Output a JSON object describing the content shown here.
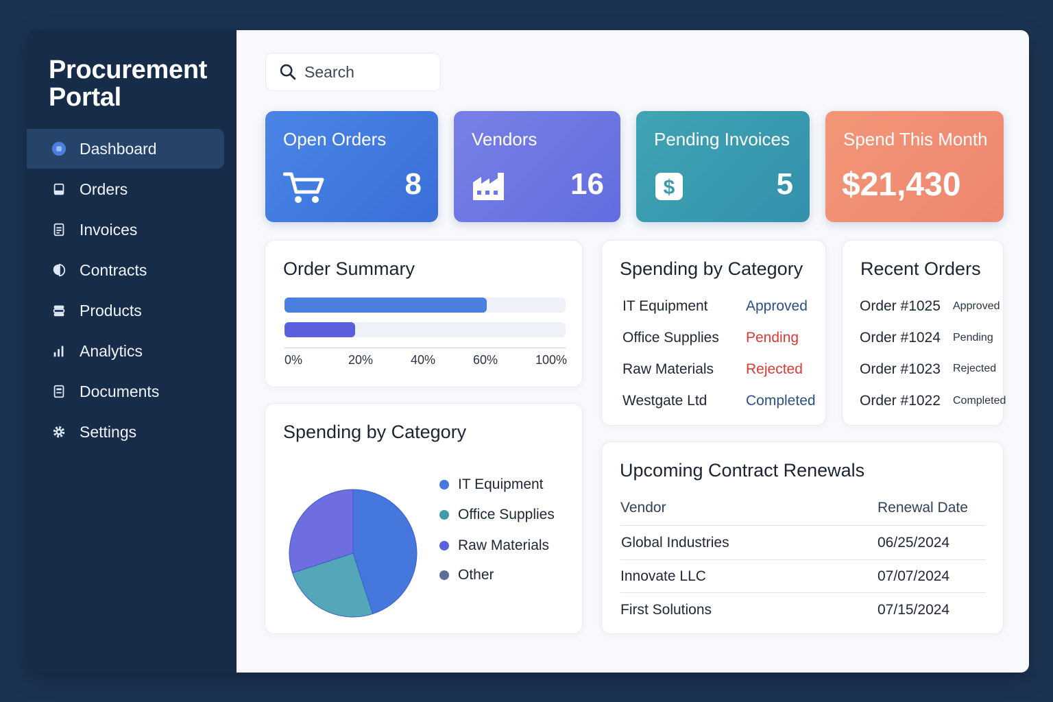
{
  "app": {
    "title_line1": "Procurement",
    "title_line2": "Portal"
  },
  "sidebar": {
    "items": [
      {
        "label": "Dashboard",
        "icon": "dashboard-icon",
        "active": true
      },
      {
        "label": "Orders",
        "icon": "orders-icon"
      },
      {
        "label": "Invoices",
        "icon": "invoices-icon"
      },
      {
        "label": "Contracts",
        "icon": "contracts-icon"
      },
      {
        "label": "Products",
        "icon": "products-icon"
      },
      {
        "label": "Analytics",
        "icon": "analytics-icon"
      },
      {
        "label": "Documents",
        "icon": "documents-icon"
      },
      {
        "label": "Settings",
        "icon": "settings-icon"
      }
    ]
  },
  "search": {
    "placeholder": "Search",
    "icon": "search-icon"
  },
  "kpis": [
    {
      "title": "Open Orders",
      "value": "8",
      "icon": "cart-icon",
      "color": "#3f78de"
    },
    {
      "title": "Vendors",
      "value": "16",
      "icon": "factory-icon",
      "color": "#6d76e3"
    },
    {
      "title": "Pending Invoices",
      "value": "5",
      "icon": "dollar-icon",
      "color": "#3a9bb0"
    },
    {
      "title": "Spend This Month",
      "value": "$21,430",
      "color": "#ef8c74"
    }
  ],
  "order_summary": {
    "title": "Order Summary",
    "chart_data": {
      "type": "bar",
      "orientation": "horizontal",
      "values": [
        72,
        25
      ],
      "colors": [
        "#4a7fe0",
        "#5b5fdc"
      ],
      "ticks": [
        "0%",
        "20%",
        "40%",
        "60%",
        "100%"
      ],
      "xlim": [
        0,
        100
      ]
    }
  },
  "spending_status": {
    "title": "Spending by Category",
    "rows": [
      {
        "label": "IT Equipment",
        "status": "Approved",
        "color": "#2c4f86"
      },
      {
        "label": "Office Supplies",
        "status": "Pending",
        "color": "#d83a34"
      },
      {
        "label": "Raw Materials",
        "status": "Rejected",
        "color": "#d83a34"
      },
      {
        "label": "Westgate Ltd",
        "status": "Completed",
        "color": "#2c4f86"
      }
    ]
  },
  "recent_orders": {
    "title": "Recent Orders",
    "rows": [
      {
        "order": "Order #1025",
        "status": "Approved"
      },
      {
        "order": "Order #1024",
        "status": "Pending"
      },
      {
        "order": "Order #1023",
        "status": "Rejected"
      },
      {
        "order": "Order #1022",
        "status": "Completed"
      }
    ]
  },
  "spending_pie": {
    "title": "Spending by Category",
    "chart_data": {
      "type": "pie",
      "slices": [
        {
          "label": "IT Equipment",
          "value": 45,
          "color": "#4677dc"
        },
        {
          "label": "Office Supplies",
          "value": 25,
          "color": "#53a7b8"
        },
        {
          "label": "Raw Materials",
          "value": 30,
          "color": "#6e6ee0"
        },
        {
          "label": "Other",
          "value": 0,
          "color": "#5e6f95"
        }
      ]
    }
  },
  "renewals": {
    "title": "Upcoming Contract Renewals",
    "headers": {
      "vendor": "Vendor",
      "date": "Renewal Date"
    },
    "rows": [
      {
        "vendor": "Global Industries",
        "date": "06/25/2024"
      },
      {
        "vendor": "Innovate LLC",
        "date": "07/07/2024"
      },
      {
        "vendor": "First Solutions",
        "date": "07/15/2024"
      }
    ]
  }
}
